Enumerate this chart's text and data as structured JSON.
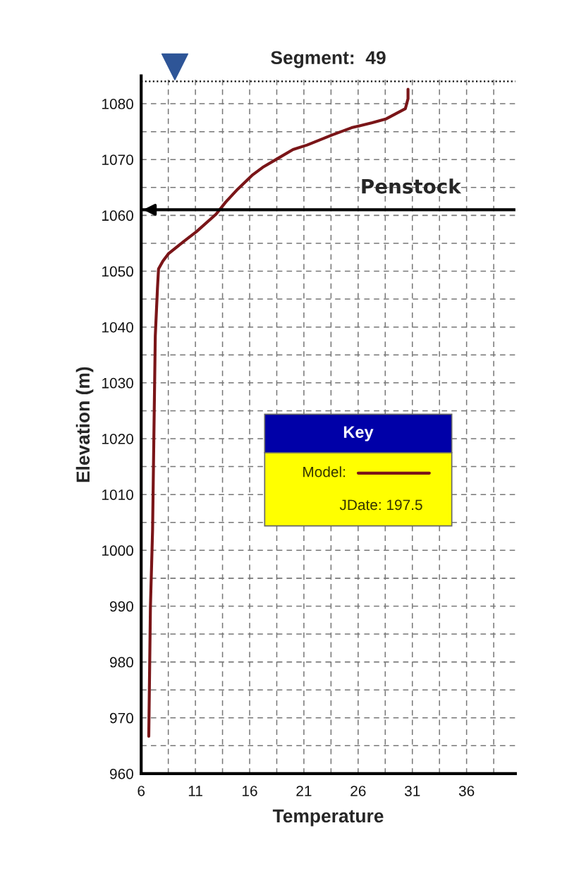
{
  "chart_data": {
    "type": "line",
    "title": "Segment:  49",
    "xlabel": "Temperature",
    "ylabel": "Elevation (m)",
    "legend_title": "Key",
    "series": [
      {
        "name": "Model:",
        "color": "#7a1518",
        "x": [
          30.6,
          30.6,
          30.35,
          28.6,
          27.3,
          25.4,
          23.6,
          21.3,
          20.0,
          18.6,
          17.2,
          16.3,
          14.9,
          13.8,
          12.9,
          11.1,
          9.9,
          8.5,
          8.0,
          7.6,
          7.5,
          7.3,
          7.2,
          7.05,
          6.85,
          6.7
        ],
        "values": [
          1082.6,
          1080.9,
          1079.1,
          1077.3,
          1076.6,
          1075.7,
          1074.4,
          1072.6,
          1071.8,
          1070.2,
          1068.6,
          1067.3,
          1064.7,
          1062.4,
          1060.2,
          1057.1,
          1055.3,
          1053.1,
          1051.8,
          1050.4,
          1046.9,
          1038.4,
          1024.5,
          1003.6,
          989.7,
          966.7
        ]
      }
    ],
    "annotations": [
      "JDate: 197.5"
    ],
    "ref_lines": [
      {
        "axis": "y",
        "value": 1084,
        "line_style": "dotted",
        "color": "#000000"
      },
      {
        "axis": "y",
        "value": 1061,
        "label": "Penstock",
        "color": "#000000"
      }
    ],
    "xlim": [
      6,
      40.5
    ],
    "ylim": [
      960,
      1085
    ],
    "xticks": [
      6,
      11,
      16,
      21,
      26,
      31,
      36
    ],
    "yticks": [
      960,
      970,
      980,
      990,
      1000,
      1010,
      1020,
      1030,
      1040,
      1050,
      1060,
      1070,
      1080
    ],
    "grid": true,
    "legend": "right",
    "line_style": "solid",
    "marker": "none"
  }
}
